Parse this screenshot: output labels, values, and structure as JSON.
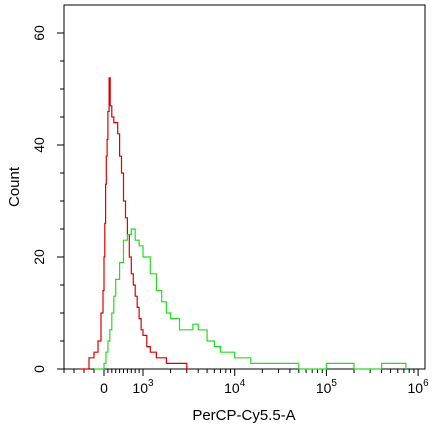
{
  "chart_data": {
    "type": "line",
    "title": "",
    "xlabel": "PerCP-Cy5.5-A",
    "ylabel": "Count",
    "x_scale": "biexponential",
    "xlim": [
      -400,
      1000000
    ],
    "ylim": [
      0,
      65
    ],
    "grid": false,
    "legend": "none",
    "y_ticks": [
      0,
      20,
      40,
      60
    ],
    "x_tick_labels": [
      {
        "value": 0,
        "base": "0",
        "exp": ""
      },
      {
        "value": 1000,
        "base": "10",
        "exp": "3"
      },
      {
        "value": 10000,
        "base": "10",
        "exp": "4"
      },
      {
        "value": 100000,
        "base": "10",
        "exp": "5"
      },
      {
        "value": 1000000,
        "base": "10",
        "exp": "6"
      }
    ],
    "series": [
      {
        "color": "#dd0000",
        "x": [
          -250,
          -150,
          -100,
          -60,
          -30,
          -10,
          0,
          20,
          40,
          60,
          80,
          100,
          130,
          160,
          200,
          250,
          300,
          350,
          400,
          450,
          500,
          550,
          600,
          650,
          700,
          750,
          800,
          850,
          900,
          950,
          1000,
          1100,
          1200,
          1400,
          1600,
          1800,
          2000,
          2500,
          3000
        ],
        "y": [
          0,
          2,
          3,
          5,
          10,
          14,
          20,
          26,
          33,
          38,
          41,
          46,
          52,
          47,
          45,
          44,
          44,
          42,
          38,
          35,
          30,
          27,
          24,
          20,
          17,
          15,
          13,
          11,
          9,
          7,
          6,
          4,
          3,
          2,
          2,
          1,
          1,
          1,
          0
        ]
      },
      {
        "color": "#22dd22",
        "x": [
          -100,
          0,
          50,
          100,
          150,
          200,
          250,
          300,
          400,
          500,
          600,
          700,
          800,
          900,
          1000,
          1200,
          1400,
          1600,
          1800,
          2000,
          2500,
          3000,
          3500,
          4000,
          5000,
          6000,
          7000,
          8000,
          9000,
          10000,
          12000,
          15000,
          20000,
          30000,
          50000,
          100000,
          200000,
          400000,
          700000
        ],
        "y": [
          0,
          1,
          3,
          5,
          7,
          10,
          13,
          16,
          19,
          23,
          24,
          25,
          23,
          22,
          20,
          17,
          14,
          12,
          10,
          9,
          7,
          7,
          8,
          7,
          5,
          4,
          3,
          3,
          3,
          2,
          2,
          1,
          1,
          1,
          0,
          1,
          0,
          1,
          1
        ]
      }
    ]
  }
}
